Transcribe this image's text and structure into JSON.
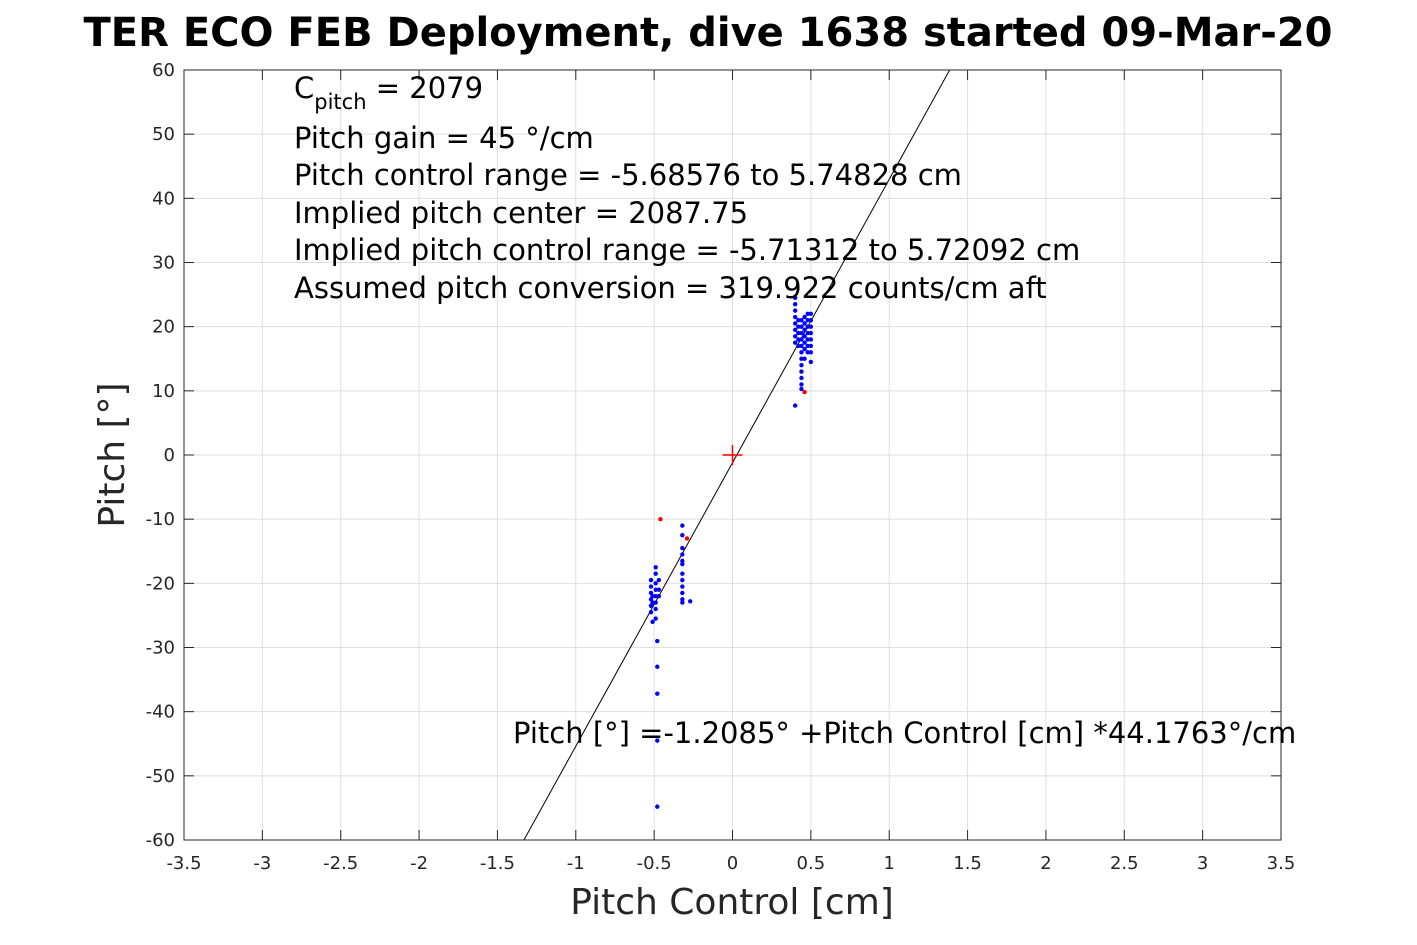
{
  "chart_data": {
    "type": "scatter",
    "title": "TER ECO FEB Deployment, dive 1638 started 09-Mar-20",
    "xlabel": "Pitch Control [cm]",
    "ylabel": "Pitch [°]",
    "xlim": [
      -3.5,
      3.5
    ],
    "ylim": [
      -60,
      60
    ],
    "xticks": [
      -3.5,
      -3,
      -2.5,
      -2,
      -1.5,
      -1,
      -0.5,
      0,
      0.5,
      1,
      1.5,
      2,
      2.5,
      3,
      3.5
    ],
    "xtick_labels": [
      "-3.5",
      "-3",
      "-2.5",
      "-2",
      "-1.5",
      "-1",
      "-0.5",
      "0",
      "0.5",
      "1",
      "1.5",
      "2",
      "2.5",
      "3",
      "3.5"
    ],
    "yticks": [
      -60,
      -50,
      -40,
      -30,
      -20,
      -10,
      0,
      10,
      20,
      30,
      40,
      50,
      60
    ],
    "ytick_labels": [
      "-60",
      "-50",
      "-40",
      "-30",
      "-20",
      "-10",
      "0",
      "10",
      "20",
      "30",
      "40",
      "50",
      "60"
    ],
    "grid": true,
    "annotations": {
      "cpitch_base": "C",
      "cpitch_sub": "pitch",
      "cpitch_rest": " = 2079",
      "lines": [
        "Pitch gain = 45 °/cm",
        "Pitch control range = -5.68576 to 5.74828 cm",
        "Implied pitch center = 2087.75",
        "Implied pitch control range = -5.71312 to 5.72092 cm",
        "Assumed pitch conversion = 319.922 counts/cm aft"
      ],
      "fit_equation": "Pitch [°] =-1.2085° +Pitch Control [cm] *44.1763°/cm"
    },
    "fit_line": {
      "intercept": -1.2085,
      "slope": 44.1763,
      "color": "#000000"
    },
    "center_marker": {
      "x": 0,
      "y": 0,
      "color": "#ff0000"
    },
    "series": [
      {
        "color": "#0000ff",
        "points": [
          [
            0.4,
            24.5
          ],
          [
            0.4,
            23.5
          ],
          [
            0.4,
            22.5
          ],
          [
            0.4,
            21.5
          ],
          [
            0.4,
            20.5
          ],
          [
            0.4,
            19.5
          ],
          [
            0.4,
            18.5
          ],
          [
            0.4,
            17.5
          ],
          [
            0.4,
            7.7
          ],
          [
            0.42,
            21.0
          ],
          [
            0.42,
            20.0
          ],
          [
            0.42,
            19.0
          ],
          [
            0.42,
            18.0
          ],
          [
            0.42,
            17.0
          ],
          [
            0.44,
            21.0
          ],
          [
            0.44,
            20.0
          ],
          [
            0.44,
            19.0
          ],
          [
            0.44,
            18.0
          ],
          [
            0.44,
            17.0
          ],
          [
            0.44,
            16.0
          ],
          [
            0.44,
            15.0
          ],
          [
            0.44,
            14.0
          ],
          [
            0.44,
            13.0
          ],
          [
            0.44,
            12.0
          ],
          [
            0.44,
            11.0
          ],
          [
            0.44,
            10.3
          ],
          [
            0.46,
            21.5
          ],
          [
            0.46,
            20.5
          ],
          [
            0.46,
            19.5
          ],
          [
            0.46,
            18.5
          ],
          [
            0.46,
            17.5
          ],
          [
            0.46,
            16.5
          ],
          [
            0.46,
            15.0
          ],
          [
            0.48,
            22.0
          ],
          [
            0.48,
            21.0
          ],
          [
            0.48,
            20.0
          ],
          [
            0.48,
            19.0
          ],
          [
            0.48,
            18.0
          ],
          [
            0.48,
            17.0
          ],
          [
            0.48,
            16.0
          ],
          [
            0.5,
            22.0
          ],
          [
            0.5,
            21.0
          ],
          [
            0.5,
            20.0
          ],
          [
            0.5,
            19.0
          ],
          [
            0.5,
            18.0
          ],
          [
            0.5,
            17.0
          ],
          [
            0.5,
            16.0
          ],
          [
            0.5,
            14.5
          ],
          [
            -0.52,
            -19.5
          ],
          [
            -0.52,
            -20.5
          ],
          [
            -0.52,
            -21.5
          ],
          [
            -0.52,
            -22.5
          ],
          [
            -0.52,
            -23.5
          ],
          [
            -0.52,
            -24.5
          ],
          [
            -0.51,
            -22.0
          ],
          [
            -0.51,
            -23.0
          ],
          [
            -0.51,
            -26.0
          ],
          [
            -0.49,
            -17.5
          ],
          [
            -0.49,
            -18.5
          ],
          [
            -0.49,
            -20.0
          ],
          [
            -0.49,
            -21.0
          ],
          [
            -0.49,
            -22.0
          ],
          [
            -0.49,
            -23.0
          ],
          [
            -0.49,
            -24.0
          ],
          [
            -0.49,
            -25.5
          ],
          [
            -0.48,
            -29.0
          ],
          [
            -0.48,
            -33.0
          ],
          [
            -0.48,
            -37.2
          ],
          [
            -0.48,
            -44.5
          ],
          [
            -0.48,
            -54.8
          ],
          [
            -0.47,
            -19.5
          ],
          [
            -0.47,
            -21.0
          ],
          [
            -0.47,
            -22.0
          ],
          [
            -0.32,
            -11.0
          ],
          [
            -0.32,
            -12.5
          ],
          [
            -0.32,
            -14.5
          ],
          [
            -0.32,
            -15.5
          ],
          [
            -0.32,
            -16.5
          ],
          [
            -0.32,
            -17.0
          ],
          [
            -0.32,
            -18.5
          ],
          [
            -0.32,
            -19.5
          ],
          [
            -0.32,
            -20.5
          ],
          [
            -0.32,
            -21.5
          ],
          [
            -0.32,
            -22.5
          ],
          [
            -0.32,
            -23.0
          ],
          [
            -0.27,
            -22.8
          ]
        ]
      },
      {
        "color": "#ff0000",
        "points": [
          [
            0.46,
            9.8
          ],
          [
            -0.46,
            -10.0
          ],
          [
            -0.29,
            -13.0
          ]
        ]
      }
    ]
  }
}
